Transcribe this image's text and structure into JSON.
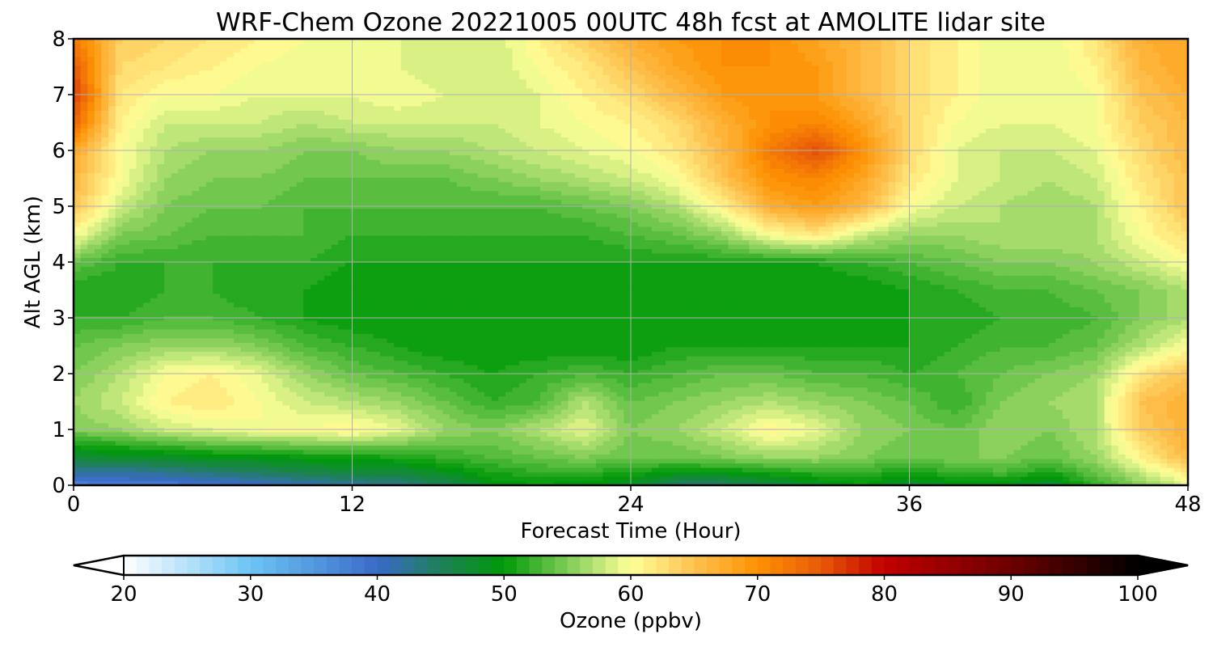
{
  "chart_data": {
    "type": "heatmap",
    "title": "WRF-Chem Ozone  20221005 00UTC 48h fcst at AMOLITE lidar site",
    "xlabel": "Forecast Time (Hour)",
    "ylabel": "Alt AGL (km)",
    "xlim": [
      0,
      48
    ],
    "ylim": [
      0,
      8
    ],
    "x_ticks": [
      "0",
      "12",
      "24",
      "36",
      "48"
    ],
    "y_ticks": [
      "0",
      "1",
      "2",
      "3",
      "4",
      "5",
      "6",
      "7",
      "8"
    ],
    "grid": true,
    "x": [
      0,
      2,
      4,
      6,
      8,
      10,
      12,
      14,
      16,
      18,
      20,
      22,
      24,
      26,
      28,
      30,
      32,
      34,
      36,
      38,
      40,
      42,
      44,
      46,
      48
    ],
    "y": [
      0,
      0.25,
      0.5,
      1,
      1.5,
      2,
      2.5,
      3,
      3.5,
      4,
      4.5,
      5,
      5.5,
      6,
      6.5,
      7,
      7.5,
      8
    ],
    "z": [
      [
        37,
        38,
        38,
        39,
        40,
        41,
        42,
        43,
        45,
        49,
        50,
        49,
        48,
        44,
        44,
        46,
        48,
        50,
        47,
        49,
        49,
        47,
        52,
        55,
        59
      ],
      [
        42,
        42,
        43,
        44,
        45,
        46,
        47,
        47,
        49,
        51,
        52,
        52,
        51,
        50,
        50,
        51,
        52,
        52,
        51,
        52,
        53,
        51,
        54,
        58,
        62
      ],
      [
        47,
        48,
        48,
        49,
        49,
        50,
        50,
        51,
        52,
        53,
        54,
        55,
        54,
        54,
        55,
        56,
        56,
        55,
        54,
        55,
        55,
        54,
        56,
        61,
        66
      ],
      [
        55,
        56,
        58,
        59,
        60,
        60,
        61,
        59,
        56,
        55,
        57,
        59,
        55,
        56,
        58,
        61,
        59,
        56,
        55,
        54,
        56,
        55,
        57,
        64,
        67
      ],
      [
        56,
        58,
        61,
        62,
        60,
        58,
        57,
        56,
        54,
        52,
        53,
        57,
        54,
        55,
        56,
        57,
        56,
        55,
        54,
        52,
        55,
        56,
        57,
        65,
        67
      ],
      [
        55,
        57,
        60,
        61,
        59,
        56,
        54,
        53,
        52,
        51,
        52,
        53,
        52,
        53,
        54,
        54,
        53,
        53,
        52,
        53,
        54,
        55,
        56,
        62,
        65
      ],
      [
        54,
        55,
        56,
        56,
        55,
        53,
        52,
        51,
        50,
        50,
        50,
        50,
        50,
        51,
        51,
        51,
        51,
        51,
        51,
        52,
        53,
        53,
        54,
        57,
        60
      ],
      [
        52,
        52,
        53,
        53,
        52,
        51,
        50,
        50,
        50,
        50,
        50,
        50,
        50,
        50,
        50,
        50,
        50,
        50,
        51,
        51,
        52,
        52,
        53,
        55,
        57
      ],
      [
        51,
        51,
        52,
        52,
        51,
        51,
        50,
        50,
        50,
        50,
        50,
        50,
        50,
        50,
        50,
        50,
        50,
        50,
        51,
        52,
        53,
        53,
        54,
        55,
        57
      ],
      [
        54,
        52,
        52,
        52,
        52,
        52,
        51,
        51,
        51,
        51,
        51,
        51,
        51,
        51,
        51,
        51,
        51,
        52,
        53,
        54,
        55,
        55,
        56,
        58,
        60
      ],
      [
        60,
        55,
        54,
        53,
        53,
        53,
        52,
        52,
        52,
        52,
        52,
        52,
        53,
        54,
        56,
        60,
        62,
        58,
        56,
        56,
        57,
        57,
        57,
        60,
        63
      ],
      [
        65,
        58,
        55,
        54,
        54,
        53,
        53,
        53,
        53,
        53,
        53,
        54,
        55,
        57,
        61,
        67,
        69,
        66,
        60,
        58,
        57,
        56,
        57,
        61,
        65
      ],
      [
        66,
        60,
        56,
        55,
        55,
        54,
        54,
        54,
        54,
        55,
        56,
        57,
        58,
        60,
        65,
        70,
        71,
        68,
        62,
        59,
        58,
        57,
        58,
        62,
        65
      ],
      [
        68,
        60,
        57,
        56,
        56,
        55,
        55,
        56,
        56,
        57,
        58,
        59,
        60,
        62,
        66,
        72,
        76,
        70,
        63,
        59,
        58,
        58,
        59,
        63,
        66
      ],
      [
        74,
        61,
        58,
        58,
        58,
        57,
        58,
        58,
        58,
        58,
        59,
        60,
        61,
        63,
        67,
        70,
        71,
        68,
        63,
        60,
        59,
        59,
        60,
        64,
        66
      ],
      [
        77,
        62,
        60,
        60,
        59,
        59,
        59,
        60,
        59,
        58,
        59,
        61,
        63,
        66,
        69,
        70,
        69,
        66,
        63,
        61,
        59,
        59,
        60,
        65,
        67
      ],
      [
        75,
        63,
        62,
        61,
        60,
        59,
        59,
        59,
        58,
        58,
        60,
        62,
        65,
        68,
        70,
        70,
        69,
        66,
        63,
        61,
        59,
        59,
        61,
        66,
        68
      ],
      [
        72,
        64,
        63,
        62,
        61,
        60,
        60,
        59,
        58,
        58,
        61,
        64,
        67,
        69,
        70,
        70,
        68,
        66,
        63,
        61,
        59,
        59,
        62,
        67,
        68
      ]
    ],
    "colorbar": {
      "label": "Ozone  (ppbv)",
      "ticks": [
        "20",
        "30",
        "40",
        "50",
        "60",
        "70",
        "80",
        "90",
        "100"
      ],
      "min": 20,
      "max": 100,
      "step": 1,
      "extend": "both",
      "stops": [
        {
          "v": 20,
          "c": "#ffffff"
        },
        {
          "v": 30,
          "c": "#6dc4f4"
        },
        {
          "v": 40,
          "c": "#3a6ac8"
        },
        {
          "v": 45,
          "c": "#1f7f5a"
        },
        {
          "v": 50,
          "c": "#009a08"
        },
        {
          "v": 55,
          "c": "#7fcc57"
        },
        {
          "v": 60,
          "c": "#ffff99"
        },
        {
          "v": 65,
          "c": "#fec250"
        },
        {
          "v": 70,
          "c": "#fd9103"
        },
        {
          "v": 75,
          "c": "#e85a08"
        },
        {
          "v": 80,
          "c": "#c10000"
        },
        {
          "v": 90,
          "c": "#6c0000"
        },
        {
          "v": 100,
          "c": "#000000"
        }
      ]
    }
  }
}
